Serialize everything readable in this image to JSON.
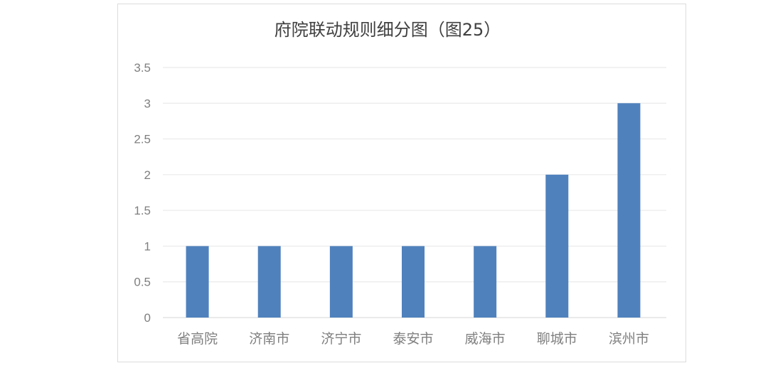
{
  "chart_data": {
    "type": "bar",
    "title": "府院联动规则细分图（图25）",
    "xlabel": "",
    "ylabel": "",
    "categories": [
      "省高院",
      "济南市",
      "济宁市",
      "泰安市",
      "威海市",
      "聊城市",
      "滨州市"
    ],
    "values": [
      1,
      1,
      1,
      1,
      1,
      2,
      3
    ],
    "ylim": [
      0,
      3.5
    ],
    "yticks": [
      0,
      0.5,
      1,
      1.5,
      2,
      2.5,
      3,
      3.5
    ],
    "ytick_labels": [
      "0",
      "0.5",
      "1",
      "1.5",
      "2",
      "2.5",
      "3",
      "3.5"
    ],
    "grid": true,
    "legend": "none",
    "bar_color": "#4f81bd"
  }
}
